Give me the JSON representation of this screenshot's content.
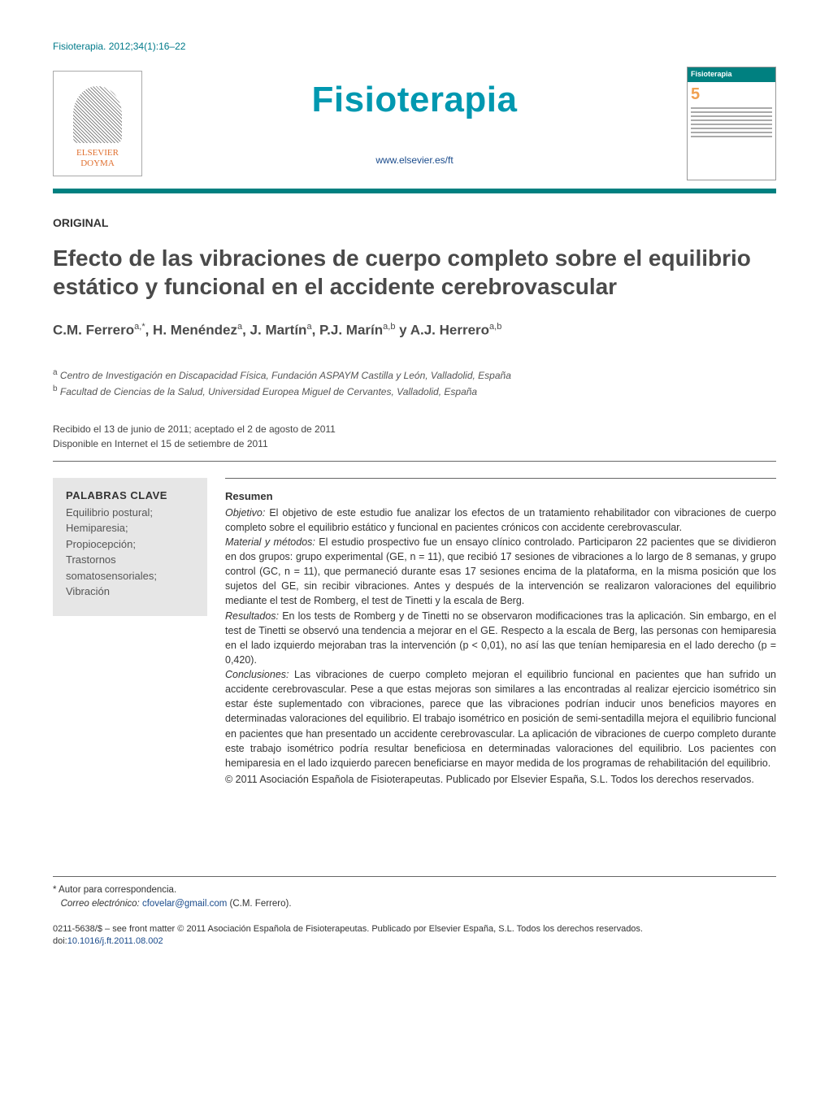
{
  "citation": "Fisioterapia. 2012;34(1):16–22",
  "masthead": {
    "publisher_top": "ELSEVIER",
    "publisher_bottom": "DOYMA",
    "journal_title": "Fisioterapia",
    "url": "www.elsevier.es/ft",
    "cover_label": "Fisioterapia",
    "cover_issue": "5"
  },
  "article_type": "ORIGINAL",
  "title": "Efecto de las vibraciones de cuerpo completo sobre el equilibrio estático y funcional en el accidente cerebrovascular",
  "authors_html": "C.M. Ferrero<sup>a,*</sup>, H. Menéndez<sup>a</sup>, J. Martín<sup>a</sup>, P.J. Marín<sup>a,b</sup> y A.J. Herrero<sup>a,b</sup>",
  "affiliations": {
    "a": "Centro de Investigación en Discapacidad Física, Fundación ASPAYM Castilla y León, Valladolid, España",
    "b": "Facultad de Ciencias de la Salud, Universidad Europea Miguel de Cervantes, Valladolid, España"
  },
  "dates": {
    "received_accepted": "Recibido el 13 de junio de 2011; aceptado el 2 de agosto de 2011",
    "online": "Disponible en Internet el 15 de setiembre de 2011"
  },
  "keywords": {
    "heading": "PALABRAS CLAVE",
    "items": "Equilibrio postural;\nHemiparesia;\nPropiocepción;\nTrastornos somatosensoriales;\nVibración"
  },
  "abstract": {
    "heading": "Resumen",
    "objetivo_label": "Objetivo:",
    "objetivo": "El objetivo de este estudio fue analizar los efectos de un tratamiento rehabilitador con vibraciones de cuerpo completo sobre el equilibrio estático y funcional en pacientes crónicos con accidente cerebrovascular.",
    "material_label": "Material y métodos:",
    "material": "El estudio prospectivo fue un ensayo clínico controlado. Participaron 22 pacientes que se dividieron en dos grupos: grupo experimental (GE, n = 11), que recibió 17 sesiones de vibraciones a lo largo de 8 semanas, y grupo control (GC, n = 11), que permaneció durante esas 17 sesiones encima de la plataforma, en la misma posición que los sujetos del GE, sin recibir vibraciones. Antes y después de la intervención se realizaron valoraciones del equilibrio mediante el test de Romberg, el test de Tinetti y la escala de Berg.",
    "resultados_label": "Resultados:",
    "resultados": "En los tests de Romberg y de Tinetti no se observaron modificaciones tras la aplicación. Sin embargo, en el test de Tinetti se observó una tendencia a mejorar en el GE. Respecto a la escala de Berg, las personas con hemiparesia en el lado izquierdo mejoraban tras la intervención (p < 0,01), no así las que tenían hemiparesia en el lado derecho (p = 0,420).",
    "conclusiones_label": "Conclusiones:",
    "conclusiones": "Las vibraciones de cuerpo completo mejoran el equilibrio funcional en pacientes que han sufrido un accidente cerebrovascular. Pese a que estas mejoras son similares a las encontradas al realizar ejercicio isométrico sin estar éste suplementado con vibraciones, parece que las vibraciones podrían inducir unos beneficios mayores en determinadas valoraciones del equilibrio. El trabajo isométrico en posición de semi-sentadilla mejora el equilibrio funcional en pacientes que han presentado un accidente cerebrovascular. La aplicación de vibraciones de cuerpo completo durante este trabajo isométrico podría resultar beneficiosa en determinadas valoraciones del equilibrio. Los pacientes con hemiparesia en el lado izquierdo parecen beneficiarse en mayor medida de los programas de rehabilitación del equilibrio.",
    "copyright": "© 2011 Asociación Española de Fisioterapeutas. Publicado por Elsevier España, S.L. Todos los derechos reservados."
  },
  "footnotes": {
    "corr_label": "* Autor para correspondencia.",
    "email_label": "Correo electrónico:",
    "email": "cfovelar@gmail.com",
    "email_suffix": "(C.M. Ferrero)."
  },
  "doi": {
    "front_matter": "0211-5638/$ – see front matter © 2011 Asociación Española de Fisioterapeutas. Publicado por Elsevier España, S.L. Todos los derechos reservados.",
    "doi_label": "doi:",
    "doi_value": "10.1016/j.ft.2011.08.002"
  },
  "colors": {
    "teal": "#007a8a",
    "teal_bar": "#008080",
    "title_blue": "#0098b0",
    "link": "#1a4b8c",
    "orange": "#e07030",
    "grey_box": "#e6e6e6"
  }
}
